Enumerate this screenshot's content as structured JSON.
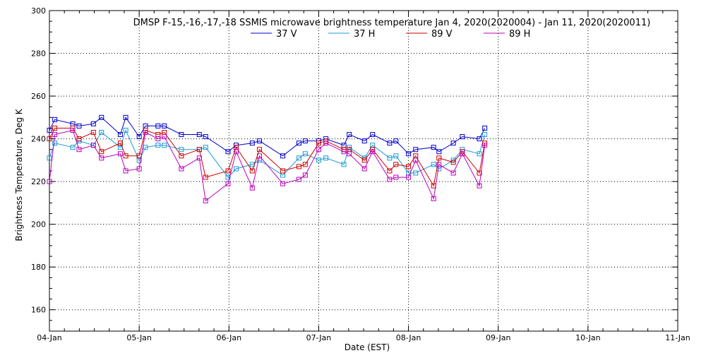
{
  "chart_data": {
    "type": "line",
    "title": "DMSP F-15,-16,-17,-18 SSMIS microwave brightness temperature Jan  4, 2020(2020004) - Jan 11, 2020(2020011)",
    "xlabel": "Date (EST)",
    "ylabel": "Brightness Temperature, Deg K",
    "xlim": [
      0,
      7
    ],
    "ylim": [
      150,
      300
    ],
    "x_ticks": [
      0,
      1,
      2,
      3,
      4,
      5,
      6,
      7
    ],
    "x_tick_labels": [
      "04-Jan",
      "05-Jan",
      "06-Jan",
      "07-Jan",
      "08-Jan",
      "09-Jan",
      "10-Jan",
      "11-Jan"
    ],
    "y_ticks": [
      160,
      180,
      200,
      220,
      240,
      260,
      280,
      300
    ],
    "y_tick_labels": [
      "160",
      "180",
      "200",
      "220",
      "240",
      "260",
      "280",
      "300"
    ],
    "grid": true,
    "legend_position": "top-center",
    "series": [
      {
        "name": "37 V",
        "color": "#0000cc",
        "points": [
          [
            0.0,
            244
          ],
          [
            0.06,
            249
          ],
          [
            0.26,
            247
          ],
          [
            0.33,
            246
          ],
          [
            0.49,
            247
          ],
          [
            0.58,
            250
          ],
          [
            0.79,
            242
          ],
          [
            0.85,
            250
          ],
          [
            1.0,
            241
          ],
          [
            1.07,
            246
          ],
          [
            1.21,
            246
          ],
          [
            1.28,
            246
          ],
          [
            1.47,
            242
          ],
          [
            1.67,
            242
          ],
          [
            1.74,
            241
          ],
          [
            1.99,
            234
          ],
          [
            2.08,
            237
          ],
          [
            2.26,
            238
          ],
          [
            2.34,
            239
          ],
          [
            2.6,
            232
          ],
          [
            2.78,
            238
          ],
          [
            2.85,
            239
          ],
          [
            3.0,
            239
          ],
          [
            3.08,
            240
          ],
          [
            3.28,
            237
          ],
          [
            3.34,
            242
          ],
          [
            3.51,
            239
          ],
          [
            3.6,
            242
          ],
          [
            3.79,
            238
          ],
          [
            3.86,
            239
          ],
          [
            4.0,
            233
          ],
          [
            4.08,
            235
          ],
          [
            4.28,
            236
          ],
          [
            4.34,
            234
          ],
          [
            4.5,
            238
          ],
          [
            4.6,
            241
          ],
          [
            4.79,
            240
          ],
          [
            4.85,
            245
          ]
        ]
      },
      {
        "name": "37 H",
        "color": "#1a99d6",
        "points": [
          [
            0.0,
            231
          ],
          [
            0.06,
            238
          ],
          [
            0.26,
            236
          ],
          [
            0.33,
            239
          ],
          [
            0.49,
            237
          ],
          [
            0.58,
            243
          ],
          [
            0.79,
            236
          ],
          [
            0.85,
            244
          ],
          [
            1.0,
            230
          ],
          [
            1.07,
            236
          ],
          [
            1.21,
            237
          ],
          [
            1.28,
            237
          ],
          [
            1.47,
            235
          ],
          [
            1.67,
            235
          ],
          [
            1.74,
            236
          ],
          [
            1.99,
            222
          ],
          [
            2.08,
            226
          ],
          [
            2.26,
            228
          ],
          [
            2.34,
            230
          ],
          [
            2.6,
            223
          ],
          [
            2.78,
            231
          ],
          [
            2.85,
            233
          ],
          [
            3.0,
            230
          ],
          [
            3.08,
            231
          ],
          [
            3.28,
            228
          ],
          [
            3.34,
            236
          ],
          [
            3.51,
            231
          ],
          [
            3.6,
            237
          ],
          [
            3.79,
            231
          ],
          [
            3.86,
            232
          ],
          [
            4.0,
            224
          ],
          [
            4.08,
            224
          ],
          [
            4.28,
            228
          ],
          [
            4.34,
            226
          ],
          [
            4.5,
            230
          ],
          [
            4.6,
            235
          ],
          [
            4.79,
            233
          ],
          [
            4.85,
            242
          ]
        ]
      },
      {
        "name": "89 V",
        "color": "#cc0000",
        "points": [
          [
            0.0,
            240
          ],
          [
            0.06,
            245
          ],
          [
            0.26,
            245
          ],
          [
            0.33,
            240
          ],
          [
            0.49,
            243
          ],
          [
            0.58,
            234
          ],
          [
            0.79,
            238
          ],
          [
            0.85,
            232
          ],
          [
            1.0,
            232
          ],
          [
            1.07,
            244
          ],
          [
            1.21,
            242
          ],
          [
            1.28,
            243
          ],
          [
            1.47,
            232
          ],
          [
            1.67,
            235
          ],
          [
            1.74,
            222
          ],
          [
            1.99,
            225
          ],
          [
            2.08,
            236
          ],
          [
            2.26,
            225
          ],
          [
            2.34,
            235
          ],
          [
            2.6,
            225
          ],
          [
            2.78,
            227
          ],
          [
            2.85,
            228
          ],
          [
            3.0,
            238
          ],
          [
            3.08,
            239
          ],
          [
            3.28,
            235
          ],
          [
            3.34,
            235
          ],
          [
            3.51,
            230
          ],
          [
            3.6,
            235
          ],
          [
            3.79,
            225
          ],
          [
            3.86,
            228
          ],
          [
            4.0,
            227
          ],
          [
            4.08,
            232
          ],
          [
            4.28,
            218
          ],
          [
            4.34,
            231
          ],
          [
            4.5,
            229
          ],
          [
            4.6,
            234
          ],
          [
            4.79,
            224
          ],
          [
            4.85,
            238
          ]
        ]
      },
      {
        "name": "89 H",
        "color": "#bb00bb",
        "points": [
          [
            0.0,
            220
          ],
          [
            0.06,
            242
          ],
          [
            0.26,
            244
          ],
          [
            0.33,
            235
          ],
          [
            0.49,
            237
          ],
          [
            0.58,
            231
          ],
          [
            0.79,
            233
          ],
          [
            0.85,
            225
          ],
          [
            1.0,
            226
          ],
          [
            1.07,
            243
          ],
          [
            1.21,
            240
          ],
          [
            1.28,
            241
          ],
          [
            1.47,
            226
          ],
          [
            1.67,
            231
          ],
          [
            1.74,
            211
          ],
          [
            1.99,
            219
          ],
          [
            2.08,
            234
          ],
          [
            2.26,
            217
          ],
          [
            2.34,
            232
          ],
          [
            2.6,
            219
          ],
          [
            2.78,
            221
          ],
          [
            2.85,
            223
          ],
          [
            3.0,
            235
          ],
          [
            3.08,
            238
          ],
          [
            3.28,
            234
          ],
          [
            3.34,
            233
          ],
          [
            3.51,
            226
          ],
          [
            3.6,
            234
          ],
          [
            3.79,
            221
          ],
          [
            3.86,
            222
          ],
          [
            4.0,
            222
          ],
          [
            4.08,
            230
          ],
          [
            4.28,
            212
          ],
          [
            4.34,
            228
          ],
          [
            4.5,
            224
          ],
          [
            4.6,
            233
          ],
          [
            4.79,
            218
          ],
          [
            4.85,
            237
          ]
        ]
      }
    ]
  }
}
